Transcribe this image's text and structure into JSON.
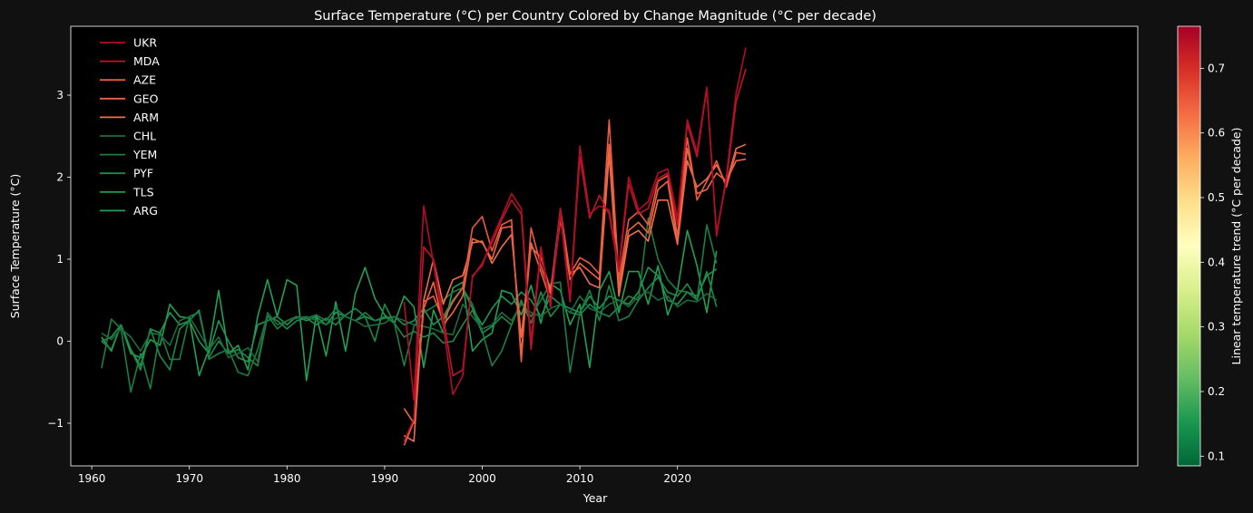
{
  "chart_data": {
    "type": "line",
    "title": "Surface Temperature (°C) per Country Colored by Change Magnitude (°C per decade)",
    "xlabel": "Year",
    "ylabel": "Surface Temperature (°C)",
    "xlim": [
      1957.85,
      2067.15
    ],
    "ylim": [
      -1.52,
      3.84
    ],
    "xticks": [
      1960,
      1970,
      1980,
      1990,
      2000,
      2010,
      2020
    ],
    "xtick_labels": [
      "1960",
      "1970",
      "1980",
      "1990",
      "2000",
      "2010",
      "2020"
    ],
    "yticks": [
      -1,
      0,
      1,
      2,
      3
    ],
    "ytick_labels": [
      "−1",
      "0",
      "1",
      "2",
      "3"
    ],
    "legend_position": "upper-left",
    "colorbar": {
      "label": "Linear temperature trend (°C per decade)",
      "range": [
        0.085,
        0.765
      ],
      "colormap": "RdYlGn_r",
      "ticks": [
        0.1,
        0.2,
        0.3,
        0.4,
        0.5,
        0.6,
        0.7
      ],
      "tick_labels": [
        "0.1",
        "0.2",
        "0.3",
        "0.4",
        "0.5",
        "0.6",
        "0.7"
      ]
    },
    "series": [
      {
        "name": "UKR",
        "color": "#b50d26",
        "x_start": 1992,
        "values": [
          0.48,
          -0.72,
          1.65,
          0.95,
          0.2,
          -0.65,
          -0.42,
          0.8,
          0.92,
          1.25,
          1.52,
          1.8,
          1.62,
          0.0,
          1.15,
          0.45,
          1.62,
          0.5,
          2.38,
          1.55,
          1.65,
          1.6,
          0.9,
          2.0,
          1.6,
          1.7,
          2.05,
          2.1,
          1.5,
          2.7,
          2.3,
          3.1,
          1.28,
          2.0,
          3.02,
          3.58
        ]
      },
      {
        "name": "MDA",
        "color": "#be1627",
        "x_start": 1992,
        "values": [
          -1.22,
          -0.95,
          1.15,
          1.0,
          0.3,
          -0.42,
          -0.35,
          0.78,
          0.95,
          1.2,
          1.48,
          1.72,
          1.55,
          -0.1,
          1.1,
          0.42,
          1.55,
          0.48,
          2.25,
          1.5,
          1.78,
          1.55,
          0.85,
          1.92,
          1.55,
          1.62,
          1.98,
          2.05,
          1.42,
          2.65,
          2.25,
          3.08,
          1.32,
          1.95,
          2.92,
          3.32
        ]
      },
      {
        "name": "AZE",
        "color": "#ea5a3e",
        "x_start": 1992,
        "values": [
          -1.27,
          -0.98,
          0.48,
          0.55,
          0.25,
          0.48,
          0.65,
          1.38,
          1.52,
          1.1,
          1.42,
          1.48,
          -0.25,
          1.38,
          0.92,
          0.58,
          1.62,
          0.82,
          1.02,
          0.95,
          0.82,
          2.7,
          0.75,
          1.48,
          1.58,
          1.42,
          1.95,
          2.02,
          1.28,
          2.48,
          1.72,
          1.95,
          2.2,
          1.88,
          2.3,
          2.28
        ]
      },
      {
        "name": "GEO",
        "color": "#ee6440",
        "x_start": 1992,
        "values": [
          -0.82,
          -1.0,
          0.4,
          0.72,
          0.2,
          0.35,
          0.55,
          1.25,
          1.2,
          1.0,
          1.38,
          1.4,
          -0.15,
          1.2,
          0.85,
          0.5,
          1.5,
          0.75,
          0.95,
          0.85,
          0.75,
          2.4,
          0.65,
          1.35,
          1.45,
          1.32,
          1.85,
          1.95,
          1.2,
          2.35,
          1.8,
          1.85,
          2.05,
          1.95,
          2.2,
          2.22
        ]
      },
      {
        "name": "ARM",
        "color": "#f06e4a",
        "x_start": 1992,
        "values": [
          -1.15,
          -1.22,
          0.5,
          1.0,
          0.45,
          0.75,
          0.8,
          1.2,
          1.22,
          0.95,
          1.15,
          1.3,
          0.05,
          1.15,
          1.02,
          0.62,
          1.48,
          0.82,
          0.9,
          0.7,
          0.65,
          2.28,
          0.55,
          1.28,
          1.35,
          1.22,
          1.72,
          1.72,
          1.18,
          2.2,
          1.88,
          1.98,
          2.15,
          1.92,
          2.35,
          2.4
        ]
      },
      {
        "name": "CHL",
        "color": "#1d6b3c",
        "x_start": 1961,
        "values": [
          0.1,
          0.02,
          0.15,
          0.05,
          -0.12,
          0.1,
          0.08,
          -0.05,
          0.25,
          0.3,
          0.1,
          -0.1,
          0.05,
          -0.2,
          -0.15,
          -0.08,
          -0.25,
          0.35,
          0.2,
          0.25,
          0.28,
          0.3,
          0.25,
          0.2,
          0.28,
          0.3,
          0.25,
          0.18,
          0.2,
          0.22,
          0.3,
          0.25,
          0.2,
          0.18,
          0.15,
          0.1,
          0.08,
          0.45,
          0.3,
          0.15,
          0.2,
          0.35,
          0.25,
          0.45,
          0.35,
          0.3,
          0.4,
          0.45,
          0.35,
          0.55,
          0.4,
          0.35,
          0.45,
          0.5,
          0.42,
          0.55,
          0.6,
          0.5,
          0.55,
          0.42,
          0.5,
          0.48,
          0.58,
          0.5
        ]
      },
      {
        "name": "YEM",
        "color": "#1b7e42",
        "x_start": 1961,
        "values": [
          -0.33,
          0.27,
          0.15,
          -0.62,
          -0.15,
          -0.58,
          0.12,
          -0.22,
          -0.22,
          0.3,
          0.35,
          -0.22,
          -0.15,
          -0.1,
          -0.38,
          -0.42,
          -0.1,
          0.32,
          0.15,
          0.25,
          0.3,
          0.28,
          0.32,
          0.25,
          0.4,
          0.3,
          0.25,
          0.35,
          0.25,
          0.3,
          0.22,
          -0.3,
          0.18,
          0.35,
          0.42,
          0.5,
          0.6,
          0.65,
          0.45,
          0.12,
          -0.3,
          -0.12,
          0.2,
          0.48,
          0.3,
          0.5,
          0.7,
          0.72,
          -0.38,
          0.35,
          0.62,
          0.25,
          0.68,
          0.25,
          0.3,
          0.5,
          1.5,
          1.0,
          0.75,
          0.62,
          0.6,
          0.5,
          1.42,
          0.95
        ]
      },
      {
        "name": "PYF",
        "color": "#1e8a48",
        "x_start": 1961,
        "values": [
          0.0,
          -0.1,
          0.2,
          -0.1,
          -0.35,
          0.15,
          -0.18,
          -0.35,
          0.15,
          0.25,
          0.38,
          -0.2,
          0.0,
          -0.15,
          -0.1,
          -0.2,
          -0.3,
          0.3,
          0.25,
          0.15,
          0.25,
          0.28,
          0.2,
          0.28,
          0.2,
          0.32,
          0.4,
          0.3,
          0.0,
          0.45,
          0.22,
          0.05,
          0.12,
          0.05,
          0.1,
          -0.02,
          0.0,
          0.2,
          0.38,
          0.1,
          0.18,
          0.3,
          0.2,
          0.5,
          0.22,
          0.6,
          0.3,
          0.45,
          0.35,
          0.32,
          0.45,
          0.35,
          0.3,
          0.42,
          0.55,
          0.5,
          0.65,
          0.78,
          0.6,
          0.55,
          0.7,
          0.5,
          0.85,
          0.42
        ]
      },
      {
        "name": "TLS",
        "color": "#209450",
        "x_start": 1961,
        "values": [
          0.0,
          0.05,
          0.2,
          -0.1,
          -0.3,
          0.15,
          0.1,
          0.35,
          0.2,
          0.25,
          0.0,
          -0.15,
          0.25,
          0.0,
          -0.2,
          -0.25,
          0.2,
          0.25,
          0.3,
          0.2,
          0.3,
          0.25,
          0.3,
          0.2,
          0.35,
          0.3,
          0.25,
          0.3,
          0.25,
          0.28,
          0.3,
          0.2,
          0.25,
          0.4,
          0.2,
          0.3,
          0.5,
          0.65,
          0.4,
          0.2,
          0.4,
          0.55,
          0.45,
          0.6,
          0.5,
          0.3,
          0.55,
          0.45,
          0.4,
          0.35,
          0.55,
          0.4,
          0.55,
          0.5,
          0.45,
          0.6,
          0.9,
          0.8,
          0.5,
          0.45,
          0.6,
          0.55,
          0.8,
          0.88
        ]
      },
      {
        "name": "ARG",
        "color": "#22a055",
        "x_start": 1961,
        "values": [
          0.05,
          -0.12,
          0.2,
          -0.15,
          -0.2,
          0.02,
          -0.05,
          0.45,
          0.3,
          0.28,
          -0.42,
          -0.1,
          0.62,
          -0.15,
          -0.05,
          -0.35,
          0.3,
          0.75,
          0.3,
          0.75,
          0.68,
          -0.48,
          0.32,
          -0.18,
          0.48,
          -0.12,
          0.58,
          0.9,
          0.52,
          0.32,
          0.22,
          0.55,
          0.42,
          -0.32,
          0.38,
          0.1,
          0.65,
          0.72,
          -0.12,
          0.02,
          0.1,
          0.62,
          0.58,
          0.32,
          0.68,
          0.22,
          0.7,
          0.62,
          0.2,
          0.45,
          -0.32,
          0.62,
          0.85,
          0.35,
          0.85,
          0.85,
          0.45,
          0.92,
          0.32,
          0.62,
          1.35,
          0.92,
          0.35,
          1.1
        ]
      }
    ]
  }
}
